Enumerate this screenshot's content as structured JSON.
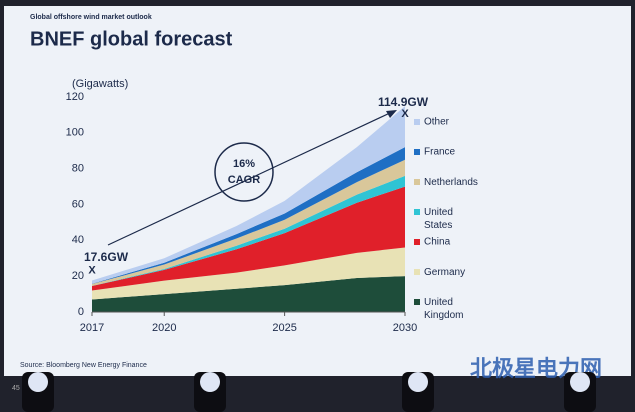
{
  "chart_data": {
    "type": "stacked_area",
    "subtitle": "Global offshore wind market outlook",
    "title": "BNEF global forecast",
    "ylabel": "(Gigawatts)",
    "x": [
      2017,
      2020,
      2023,
      2025,
      2028,
      2030
    ],
    "xlim": [
      2017,
      2030
    ],
    "xticks": [
      2017,
      2020,
      2025,
      2030
    ],
    "ylim": [
      0,
      120
    ],
    "yticks": [
      0,
      20,
      40,
      60,
      80,
      100,
      120
    ],
    "series": [
      {
        "name": "United Kingdom",
        "color": "#1e4d3a",
        "values": [
          7,
          10,
          13,
          15,
          19,
          20
        ]
      },
      {
        "name": "Germany",
        "color": "#e8e2b5",
        "values": [
          5,
          7.5,
          9,
          11,
          14,
          16
        ]
      },
      {
        "name": "China",
        "color": "#e0202a",
        "values": [
          2.5,
          6,
          13,
          18,
          28,
          34
        ]
      },
      {
        "name": "United States",
        "color": "#2fc4d4",
        "values": [
          0.1,
          0.5,
          2,
          2.5,
          4.5,
          6
        ]
      },
      {
        "name": "Netherlands",
        "color": "#d9c79a",
        "values": [
          1,
          2.5,
          4,
          5,
          7,
          9
        ]
      },
      {
        "name": "France",
        "color": "#1f6fc4",
        "values": [
          0.2,
          1,
          2.5,
          3.5,
          5.5,
          7
        ]
      },
      {
        "name": "Other",
        "color": "#b9cdf0",
        "values": [
          1.8,
          2.5,
          4.5,
          7,
          14,
          22.9
        ]
      }
    ],
    "annotations": {
      "start": "17.6GW",
      "end": "114.9GW",
      "marker": "X",
      "cagr": "16%",
      "cagr_label": "CAGR"
    },
    "source": "Source: Bloomberg New Energy Finance",
    "page": "45",
    "watermark": "北极星电力网"
  }
}
